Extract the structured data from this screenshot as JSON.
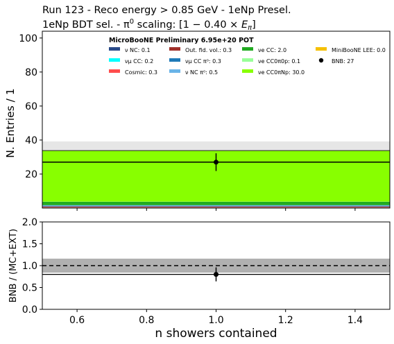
{
  "title_lines": [
    "Run 123 - Reco energy > 0.85 GeV - 1eNp Presel.",
    "1eNp BDT sel. - π⁰ scaling: [1 − 0.40 × Eπ]"
  ],
  "chart_data": [
    {
      "type": "bar",
      "panel": "main",
      "stacked": true,
      "xlabel": "n showers contained",
      "ylabel": "N. Entries / 1",
      "xlim": [
        0.5,
        1.5
      ],
      "ylim": [
        0,
        104
      ],
      "yticks": [
        20,
        40,
        60,
        80,
        100
      ],
      "xticks": [
        0.6,
        0.8,
        1.0,
        1.2,
        1.4
      ],
      "legend_title": "MicroBooNE Preliminary 6.95e+20 POT",
      "legend_position": "top-right",
      "bin": [
        0.5,
        1.5
      ],
      "series": [
        {
          "name": "ν NC: 0.1",
          "value": 0.1,
          "color": "#2a4b8a"
        },
        {
          "name": "νμ CC: 0.2",
          "value": 0.2,
          "color": "#00ffff"
        },
        {
          "name": "Cosmic: 0.3",
          "value": 0.3,
          "color": "#ff4d4d"
        },
        {
          "name": "Out. fid. vol.: 0.3",
          "value": 0.3,
          "color": "#a0302a"
        },
        {
          "name": "νμ CC π⁰: 0.3",
          "value": 0.3,
          "color": "#1f7ab8"
        },
        {
          "name": "ν NC π⁰: 0.5",
          "value": 0.5,
          "color": "#6ab4e8"
        },
        {
          "name": "νe CC: 2.0",
          "value": 2.0,
          "color": "#22aa22"
        },
        {
          "name": "νe CC0π0p: 0.1",
          "value": 0.1,
          "color": "#99ff99"
        },
        {
          "name": "νe CC0πNp: 30.0",
          "value": 30.0,
          "color": "#88ff00"
        },
        {
          "name": "MiniBooNE LEE: 0.0",
          "value": 0.0,
          "color": "#f5c000"
        }
      ],
      "uncertainty_band": {
        "low": 33.8,
        "high": 39.2,
        "color": "#cccccc"
      },
      "data_points": [
        {
          "name": "BNB: 27",
          "x": 1.0,
          "y": 27,
          "yerr": 5.2,
          "color": "#000000"
        }
      ],
      "data_line": 27
    },
    {
      "type": "scatter",
      "panel": "ratio",
      "xlabel": "n showers contained",
      "ylabel": "BNB / (MC+EXT)",
      "xlim": [
        0.5,
        1.5
      ],
      "ylim": [
        0.0,
        2.0
      ],
      "yticks": [
        0.0,
        0.5,
        1.0,
        1.5,
        2.0
      ],
      "reference_line": 1.0,
      "band": {
        "low": 0.84,
        "high": 1.16,
        "color": "#b0b0b0"
      },
      "points": [
        {
          "x": 1.0,
          "y": 0.8,
          "yerr": 0.16
        }
      ],
      "ratio_line": 0.8
    }
  ]
}
